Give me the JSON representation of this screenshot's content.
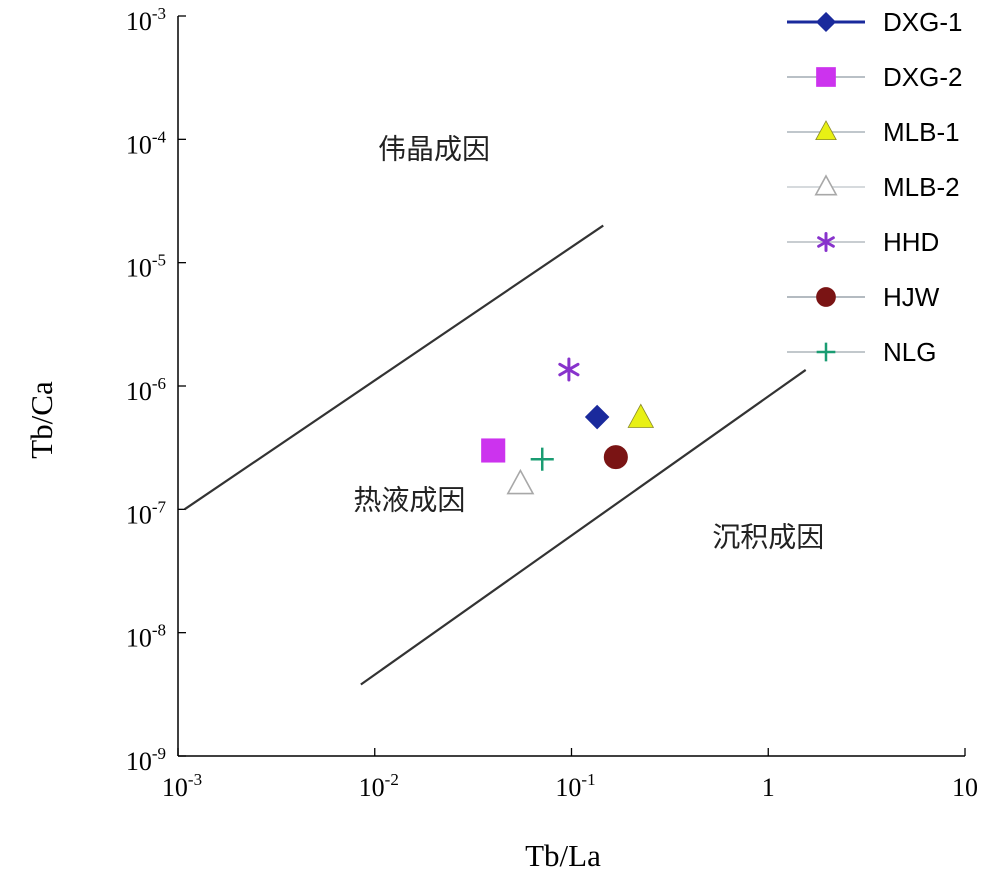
{
  "chart_data": {
    "type": "scatter",
    "title": "",
    "xlabel": "Tb/La",
    "ylabel": "Tb/Ca",
    "x_scale": "log",
    "y_scale": "log",
    "xlim": [
      0.001,
      10
    ],
    "ylim": [
      1e-09,
      0.001
    ],
    "x_ticks": [
      {
        "value": 0.001,
        "base": "10",
        "exp": "-3"
      },
      {
        "value": 0.01,
        "base": "10",
        "exp": "-2"
      },
      {
        "value": 0.1,
        "base": "10",
        "exp": "-1"
      },
      {
        "value": 1,
        "base": "1",
        "exp": ""
      },
      {
        "value": 10,
        "base": "10",
        "exp": ""
      }
    ],
    "y_ticks": [
      {
        "value": 1e-09,
        "base": "10",
        "exp": "-9"
      },
      {
        "value": 1e-08,
        "base": "10",
        "exp": "-8"
      },
      {
        "value": 1e-07,
        "base": "10",
        "exp": "-7"
      },
      {
        "value": 1e-06,
        "base": "10",
        "exp": "-6"
      },
      {
        "value": 1e-05,
        "base": "10",
        "exp": "-5"
      },
      {
        "value": 0.0001,
        "base": "10",
        "exp": "-4"
      },
      {
        "value": 0.001,
        "base": "10",
        "exp": "-3"
      }
    ],
    "regions": [
      {
        "name": "伟晶成因",
        "x": 0.02,
        "y": 7e-05
      },
      {
        "name": "热液成因",
        "x": 0.015,
        "y": 1e-07
      },
      {
        "name": "沉积成因",
        "x": 1.0,
        "y": 5e-08
      }
    ],
    "boundary_lines": [
      {
        "name": "upper-boundary",
        "x": [
          0.00108,
          0.145
        ],
        "y": [
          1e-07,
          2e-05
        ]
      },
      {
        "name": "lower-boundary",
        "x": [
          0.0085,
          1.55
        ],
        "y": [
          3.8e-09,
          1.35e-06
        ]
      }
    ],
    "series": [
      {
        "name": "DXG-1",
        "marker": "diamond",
        "color": "#1a2a9c",
        "line_color": "#1a2a9c",
        "filled": true,
        "x": [
          0.135
        ],
        "y": [
          5.6e-07
        ]
      },
      {
        "name": "DXG-2",
        "marker": "square",
        "color": "#cc33ee",
        "line_color": "#b9c0c6",
        "filled": true,
        "x": [
          0.04
        ],
        "y": [
          3e-07
        ]
      },
      {
        "name": "MLB-1",
        "marker": "triangle",
        "color": "#e8f014",
        "line_color": "#c0c7cc",
        "filled": true,
        "x": [
          0.225
        ],
        "y": [
          5.5e-07
        ]
      },
      {
        "name": "MLB-2",
        "marker": "triangle",
        "color": "#a8a8a8",
        "line_color": "#d6dadd",
        "filled": false,
        "x": [
          0.055
        ],
        "y": [
          1.6e-07
        ]
      },
      {
        "name": "HHD",
        "marker": "asterisk",
        "color": "#8833cc",
        "line_color": "#c8cdd1",
        "filled": false,
        "x": [
          0.097
        ],
        "y": [
          1.36e-06
        ]
      },
      {
        "name": "HJW",
        "marker": "circle",
        "color": "#7a1414",
        "line_color": "#b4bbc1",
        "filled": true,
        "x": [
          0.168
        ],
        "y": [
          2.65e-07
        ]
      },
      {
        "name": "NLG",
        "marker": "plus",
        "color": "#1a9c72",
        "line_color": "#c2c8cc",
        "filled": false,
        "x": [
          0.071
        ],
        "y": [
          2.55e-07
        ]
      }
    ]
  }
}
